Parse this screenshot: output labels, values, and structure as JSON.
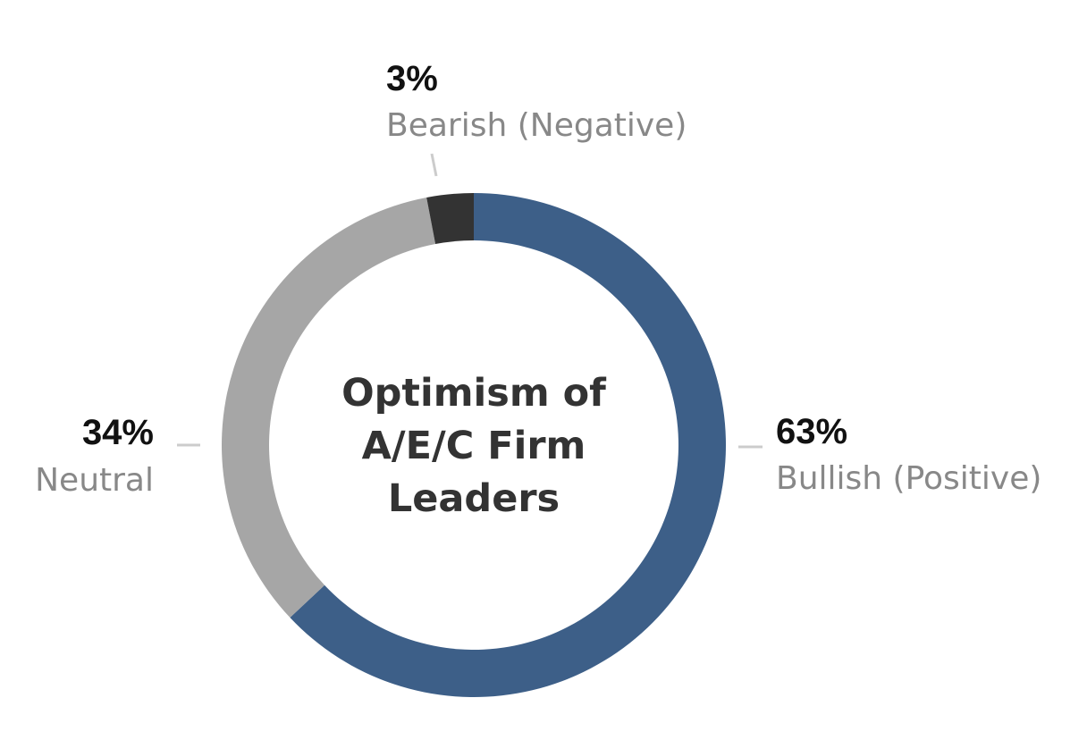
{
  "chart_data": {
    "type": "pie",
    "variant": "donut",
    "center_title": [
      "Optimism of",
      "A/E/C Firm",
      "Leaders"
    ],
    "slices": [
      {
        "label": "Bullish (Positive)",
        "value": 63,
        "value_label": "63%",
        "color": "#3d5f88"
      },
      {
        "label": "Neutral",
        "value": 34,
        "value_label": "34%",
        "color": "#a6a6a6"
      },
      {
        "label": "Bearish (Negative)",
        "value": 3,
        "value_label": "3%",
        "color": "#333333"
      }
    ],
    "legend": "none"
  }
}
